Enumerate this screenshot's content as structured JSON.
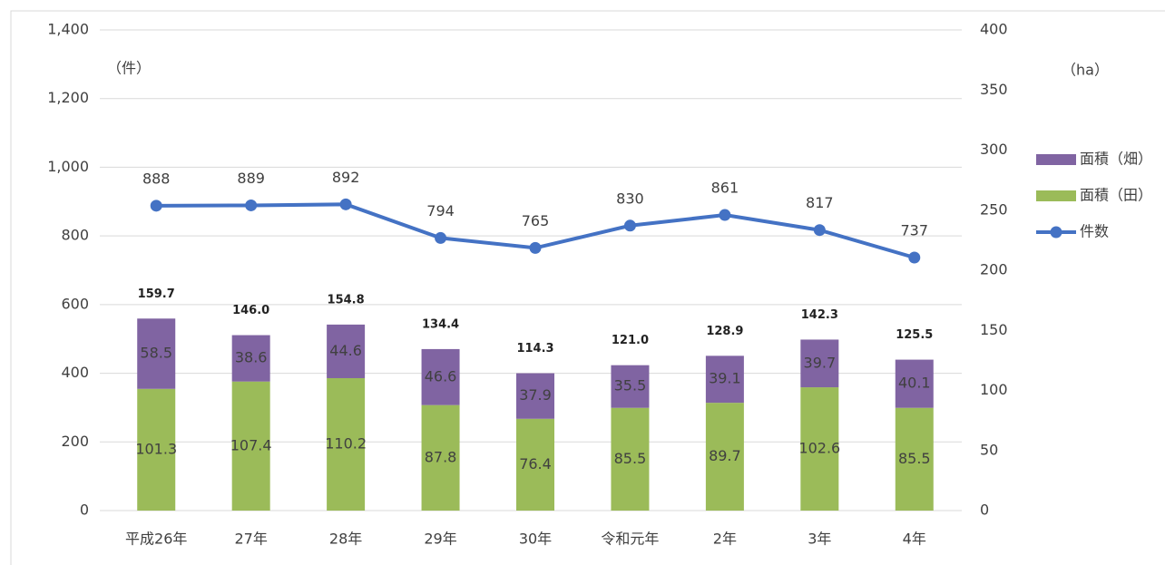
{
  "chart_data": {
    "type": "combo",
    "categories": [
      "平成26年",
      "27年",
      "28年",
      "29年",
      "30年",
      "令和元年",
      "2年",
      "3年",
      "4年"
    ],
    "y_label": "（件）",
    "y2_label": "（ha）",
    "ylim": [
      0,
      1400
    ],
    "yticks": [
      0,
      200,
      400,
      600,
      800,
      {
        "value": 1000,
        "label": "1,000"
      },
      {
        "value": 1200,
        "label": "1,200"
      },
      {
        "value": 1400,
        "label": "1,400"
      }
    ],
    "y2lim": [
      0,
      400
    ],
    "y2ticks": [
      0,
      50,
      100,
      150,
      200,
      250,
      300,
      350,
      400
    ],
    "grid": true,
    "legend": "right",
    "series": [
      {
        "name": "面積（畑）",
        "color": "#8064a2",
        "axis": "y2",
        "values": [
          58.5,
          38.6,
          44.6,
          46.6,
          37.9,
          35.5,
          39.1,
          39.7,
          40.1
        ]
      },
      {
        "name": "面積（田）",
        "color": "#9bbb59",
        "axis": "y2",
        "values": [
          101.3,
          107.4,
          110.2,
          87.8,
          76.4,
          85.5,
          89.7,
          102.6,
          85.5
        ]
      },
      {
        "name": "件数",
        "color": "#4472c4",
        "values": [
          888,
          889,
          892,
          794,
          765,
          830,
          861,
          817,
          737
        ]
      }
    ],
    "totals": [
      159.7,
      146,
      154.8,
      134.4,
      114.3,
      121,
      128.9,
      142.3,
      125.5
    ],
    "total_labels": [
      "159.7",
      "146.0",
      "154.8",
      "134.4",
      "114.3",
      "121.0",
      "128.9",
      "142.3",
      "125.5"
    ]
  }
}
